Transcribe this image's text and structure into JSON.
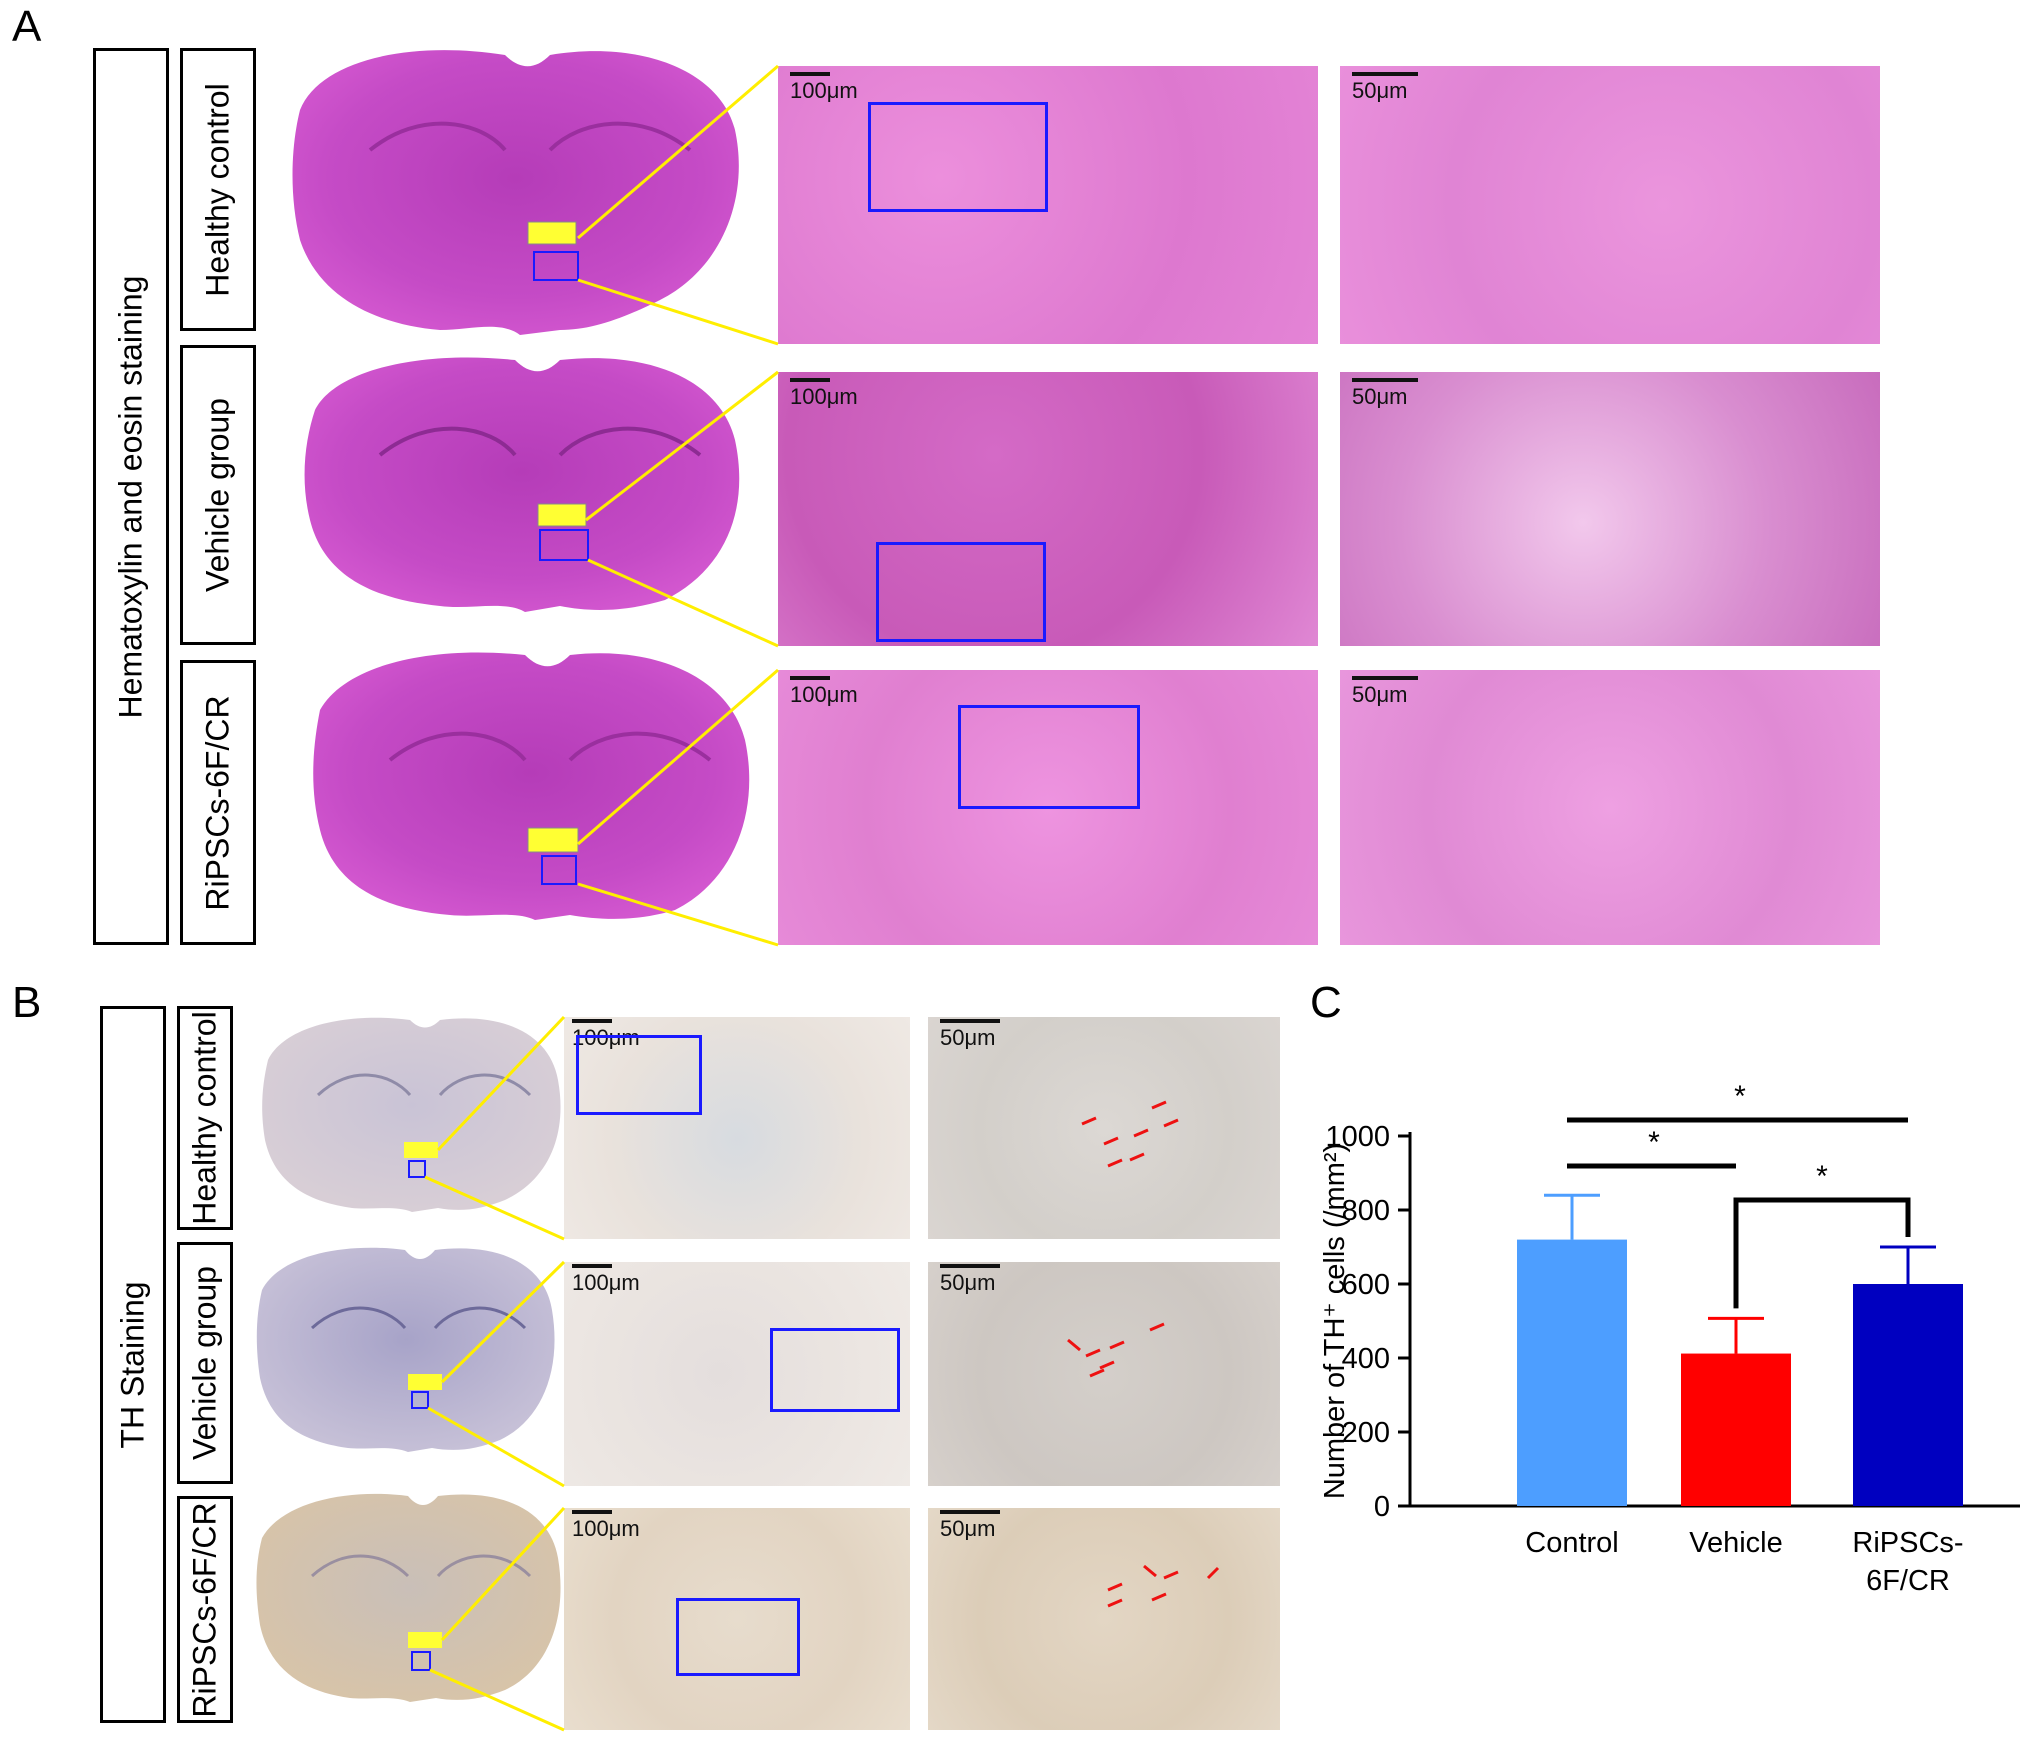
{
  "panels": {
    "a": "A",
    "b": "B",
    "c": "C"
  },
  "panel_a": {
    "group_title": "Hematoxylin and eosin staining",
    "rows": [
      "Healthy control",
      "Vehicle group",
      "RiPSCs-6F/CR"
    ],
    "scale_low": "100μm",
    "scale_high": "50μm"
  },
  "panel_b": {
    "group_title": "TH Staining",
    "rows": [
      "Healthy control",
      "Vehicle group",
      "RiPSCs-6F/CR"
    ],
    "scale_low": "100μm",
    "scale_high": "50μm"
  },
  "colors": {
    "he_low": "#e07fd0",
    "he_high": "#e486da",
    "brain_he": "#cc44cc",
    "th_low": "#e9e1dc",
    "th_high": "#d8d2cc",
    "zoom_line": "#ffee00",
    "roi_box": "#1a1aff",
    "control_bar": "#4d9eff",
    "vehicle_bar": "#ff0000",
    "ripsc_bar": "#0000c0"
  },
  "chart_data": {
    "type": "bar",
    "categories": [
      "Control",
      "Vehicle",
      "RiPSCs-6F/CR"
    ],
    "category_labels": [
      [
        "Control"
      ],
      [
        "Vehicle"
      ],
      [
        "RiPSCs-",
        "6F/CR"
      ]
    ],
    "values": [
      720,
      412,
      600
    ],
    "errors": [
      120,
      95,
      100
    ],
    "ylabel": "Number of TH⁺ cells (/mm²)",
    "ylim": [
      0,
      1000
    ],
    "yticks": [
      "0",
      "200",
      "400",
      "600",
      "800",
      "1000"
    ],
    "significance": [
      {
        "pair": [
          0,
          2
        ],
        "label": "*"
      },
      {
        "pair": [
          0,
          1
        ],
        "label": "*"
      },
      {
        "pair": [
          1,
          2
        ],
        "label": "*"
      }
    ],
    "grid": false
  }
}
